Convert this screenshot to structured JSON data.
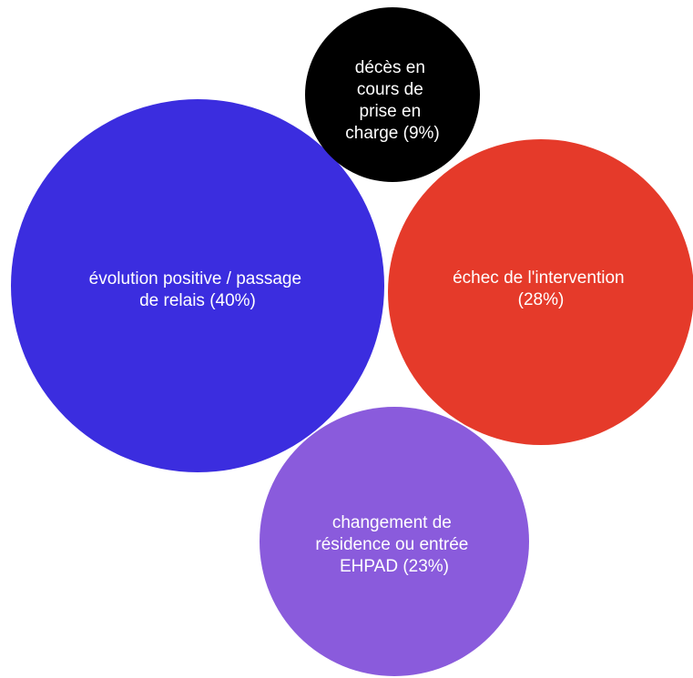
{
  "chart_data": {
    "type": "bubble",
    "series": [
      {
        "label": "évolution positive / passage de relais",
        "value_display": "(40%)",
        "value": 40,
        "color": "#3b2ddf"
      },
      {
        "label": "échec de l'intervention",
        "value_display": "(28%)",
        "value": 28,
        "color": "#e53a2a"
      },
      {
        "label": "changement de résidence ou entrée EHPAD",
        "value_display": "(23%)",
        "value": 23,
        "color": "#8a5bdc"
      },
      {
        "label": "décès en cours de prise en charge",
        "value_display": "(9%)",
        "value": 9,
        "color": "#000000"
      }
    ]
  }
}
